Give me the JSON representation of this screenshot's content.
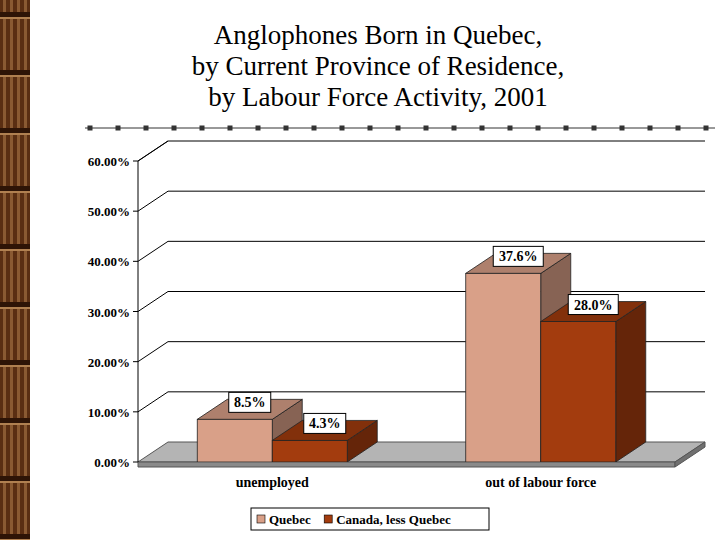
{
  "chart_data": {
    "type": "bar",
    "title": "Anglophones Born in Quebec,\nby Current Province of Residence,\nby Labour Force Activity, 2001",
    "categories": [
      "unemployed",
      "out of labour force"
    ],
    "series": [
      {
        "name": "Quebec",
        "color": "#d9a088",
        "values": [
          8.5,
          37.6
        ],
        "value_labels": [
          "8.5%",
          "37.6%"
        ]
      },
      {
        "name": "Canada, less Quebec",
        "color": "#a33c0e",
        "values": [
          4.3,
          28.0
        ],
        "value_labels": [
          "4.3%",
          "28.0%"
        ]
      }
    ],
    "ylim": [
      0,
      60
    ],
    "yticks": [
      {
        "value": 0,
        "label": "0.00%"
      },
      {
        "value": 10,
        "label": "10.00%"
      },
      {
        "value": 20,
        "label": "20.00%"
      },
      {
        "value": 30,
        "label": "30.00%"
      },
      {
        "value": 40,
        "label": "40.00%"
      },
      {
        "value": 50,
        "label": "50.00%"
      },
      {
        "value": 60,
        "label": "60.00%"
      }
    ],
    "grid": true,
    "legend": "bottom",
    "data_labels": true
  }
}
